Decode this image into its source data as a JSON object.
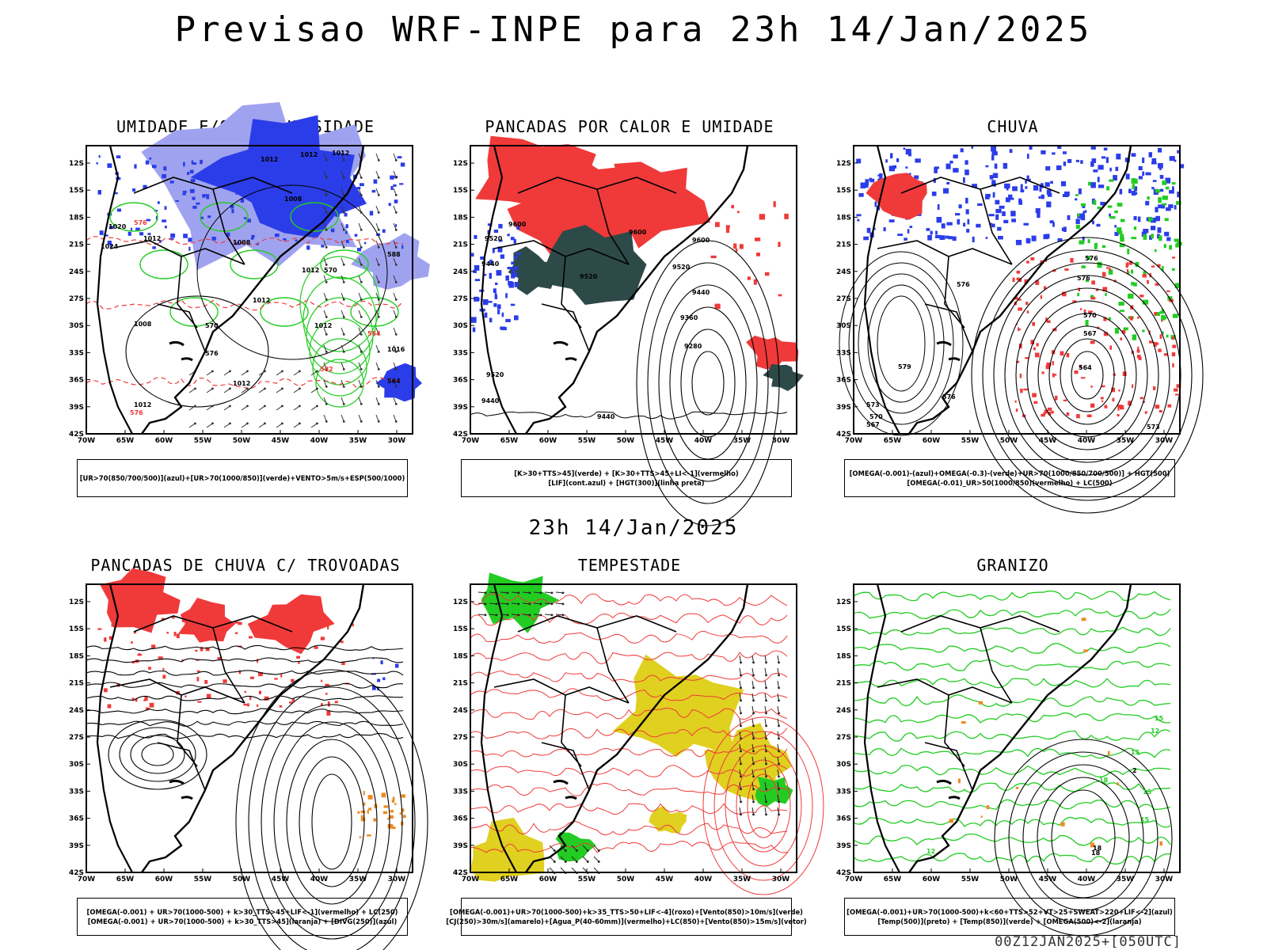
{
  "header": {
    "title": "Previsao WRF-INPE  para 23h 14/Jan/2025"
  },
  "middle": {
    "title": "23h 14/Jan/2025"
  },
  "footer": {
    "run_label": "00Z12JAN2025+[050UTC]"
  },
  "axes": {
    "lat_labels": [
      "12S",
      "15S",
      "18S",
      "21S",
      "24S",
      "27S",
      "30S",
      "33S",
      "36S",
      "39S",
      "42S"
    ],
    "lon_labels": [
      "70W",
      "65W",
      "60W",
      "55W",
      "50W",
      "45W",
      "40W",
      "35W",
      "30W"
    ]
  },
  "colors": {
    "blue": "#2b3de8",
    "light_blue": "#9fa3ef",
    "green": "#22cc22",
    "red": "#f03a3a",
    "orange": "#ee8a22",
    "yellow": "#e0d020",
    "dark_teal": "#2e4a48",
    "black": "#000000"
  },
  "panels": [
    {
      "title": "UMIDADE E/OU NEBULOSIDADE",
      "legend": [
        "[UR>70(850/700/500)](azul)+[UR>70(1000/850)](verde)+VENTO>5m/s+ESP(500/1000)"
      ],
      "contour_labels": [
        "1012",
        "1012",
        "1012",
        "1008",
        "1008",
        "1012",
        "1012",
        "1012",
        "1012",
        "1008",
        "1012",
        "1016",
        "1020",
        "1024",
        "1012",
        "570",
        "564",
        "576",
        "582",
        "588",
        "576",
        "570",
        "564",
        "576"
      ]
    },
    {
      "title": "PANCADAS POR CALOR E UMIDADE",
      "legend": [
        "[K>30+TTS>45](verde) + [K>30+TTS>45+LI<-1](vermelho)",
        "[LIF](cont.azul) + [HGT(300)](linha preta)"
      ],
      "contour_labels": [
        "9600",
        "9520",
        "9440",
        "9600",
        "9520",
        "9600",
        "9520",
        "9440",
        "9360",
        "9280",
        "9520",
        "9440",
        "9440"
      ]
    },
    {
      "title": "CHUVA",
      "legend": [
        "[OMEGA(-0.001)-(azul)+OMEGA(-0.3)-(verde)+UR>70(1000/850/700/500)] + HGT(500)",
        "[OMEGA(-0.01)_UR>50(1000/850)(vermelho) + LC(500)"
      ],
      "contour_labels": [
        "576",
        "576",
        "570",
        "567",
        "564",
        "579",
        "576",
        "573",
        "570",
        "567",
        "576",
        "573"
      ]
    },
    {
      "title": "PANCADAS DE CHUVA C/ TROVOADAS",
      "legend": [
        "[OMEGA(-0.001) + UR>70(1000-500) + k>30_TTS>45+LIF<-1](vermelho) + LC(250)",
        "[OMEGA(-0.001) + UR>70(1000-500) + k>30_TTS>45](laranja) + [DIVG(250)](azul)"
      ],
      "contour_labels": []
    },
    {
      "title": "TEMPESTADE",
      "legend": [
        "[OMEGA(-0.001)+UR>70(1000-500)+k>35_TTS>50+LIF<-4](roxo)+[Vento(850)>10m/s](verde)",
        "[CJ(250)>30m/s](amarelo)+[Agua_P(40-60mm)](vermelho)+LC(850)+[Vento(850)>15m/s](vetor)"
      ],
      "contour_labels": []
    },
    {
      "title": "GRANIZO",
      "legend": [
        "[OMEGA(-0.001)+UR>70(1000-500)+k<60+TTS>52+VT>25+SWEAT>220+LIF<-2](azul)",
        "[Temp(500)](preto) + [Temp(850)](verde) + [OMEGA(500)<-2](laranja)"
      ],
      "contour_labels": [
        "12",
        "15",
        "2",
        "15",
        "18",
        "18",
        "12",
        "15",
        "18",
        "15"
      ]
    }
  ]
}
